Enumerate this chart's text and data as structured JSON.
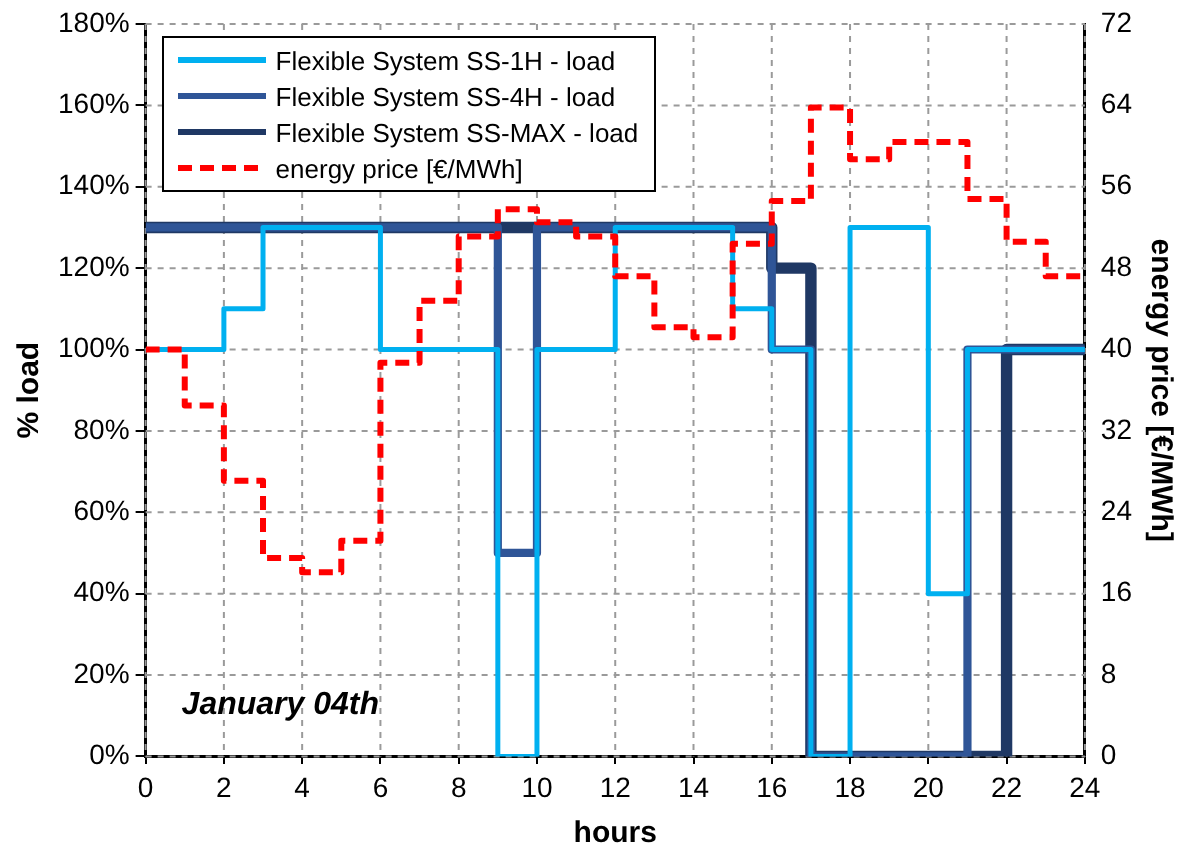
{
  "chart_data": {
    "type": "step",
    "xlabel": "hours",
    "ylabel": "% load",
    "y2label": "energy price [€/MWh]",
    "x": [
      0,
      1,
      2,
      3,
      4,
      5,
      6,
      7,
      8,
      9,
      10,
      11,
      12,
      13,
      14,
      15,
      16,
      17,
      18,
      19,
      20,
      21,
      22,
      23,
      24
    ],
    "series": [
      {
        "name": "Flexible System SS-1H - load",
        "color": "#00b0f0",
        "values": [
          100,
          100,
          110,
          130,
          130,
          130,
          100,
          100,
          100,
          0,
          100,
          100,
          130,
          130,
          130,
          110,
          100,
          0,
          130,
          130,
          40,
          100,
          100,
          100,
          100
        ]
      },
      {
        "name": "Flexible System SS-4H - load",
        "color": "#2f5597",
        "values": [
          130,
          130,
          130,
          130,
          130,
          130,
          130,
          130,
          130,
          50,
          130,
          130,
          130,
          130,
          130,
          130,
          100,
          0,
          0,
          0,
          0,
          100,
          100,
          100,
          100
        ]
      },
      {
        "name": "Flexible System SS-MAX - load",
        "color": "#1f3864",
        "values": [
          130,
          130,
          130,
          130,
          130,
          130,
          130,
          130,
          130,
          130,
          130,
          130,
          130,
          130,
          130,
          130,
          120,
          0,
          0,
          0,
          0,
          0,
          100,
          100,
          100
        ]
      },
      {
        "name": "energy price [€/MWh]",
        "color": "#ff0000",
        "axis": "y2",
        "line_style": "dashed",
        "values": [
          40,
          34.5,
          27.1,
          19.5,
          18.1,
          21.2,
          38.7,
          44.8,
          51.1,
          53.8,
          52.5,
          51.1,
          47.2,
          42.2,
          41.2,
          50.4,
          54.6,
          63.8,
          58.7,
          60.4,
          60.4,
          54.8,
          50.6,
          47.2,
          47.2
        ]
      }
    ],
    "xlim": [
      0,
      24
    ],
    "xticks": [
      0,
      2,
      4,
      6,
      8,
      10,
      12,
      14,
      16,
      18,
      20,
      22,
      24
    ],
    "ylim": [
      0,
      180
    ],
    "yticks": [
      {
        "value": 0,
        "label": "0%"
      },
      {
        "value": 20,
        "label": "20%"
      },
      {
        "value": 40,
        "label": "40%"
      },
      {
        "value": 60,
        "label": "60%"
      },
      {
        "value": 80,
        "label": "80%"
      },
      {
        "value": 100,
        "label": "100%"
      },
      {
        "value": 120,
        "label": "120%"
      },
      {
        "value": 140,
        "label": "140%"
      },
      {
        "value": 160,
        "label": "160%"
      },
      {
        "value": 180,
        "label": "180%"
      }
    ],
    "y2lim": [
      0,
      72
    ],
    "y2ticks": [
      0,
      8,
      16,
      24,
      32,
      40,
      48,
      56,
      64,
      72
    ],
    "grid": true,
    "legend": "top left",
    "line_style": "solid",
    "annotations": [
      {
        "text": "January 04th"
      }
    ]
  }
}
